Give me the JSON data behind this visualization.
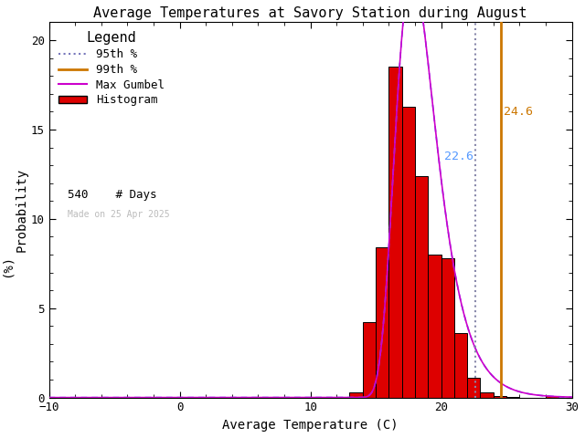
{
  "title": "Average Temperatures at Savory Station during August",
  "xlabel": "Average Temperature (C)",
  "ylabel1": "Probability",
  "ylabel2": "(%)",
  "xlim": [
    -10,
    30
  ],
  "ylim": [
    0,
    21
  ],
  "yticks": [
    0,
    5,
    10,
    15,
    20
  ],
  "xticks": [
    -10,
    0,
    10,
    20,
    30
  ],
  "bar_edges": [
    13,
    14,
    15,
    16,
    17,
    18,
    19,
    20,
    21,
    22,
    23,
    24,
    25,
    26,
    28
  ],
  "bar_heights": [
    0.3,
    4.2,
    8.4,
    18.5,
    16.3,
    12.4,
    8.0,
    7.8,
    3.6,
    1.1,
    0.3,
    0.08,
    0.02,
    0.0,
    0.1
  ],
  "n_days": 540,
  "pct_95": 22.6,
  "pct_99": 24.6,
  "gumbel_mu": 17.8,
  "gumbel_beta": 1.55,
  "bar_color": "#dd0000",
  "bar_edge_color": "#000000",
  "gumbel_color_outer": "#cc00cc",
  "gumbel_color_inner": "#6666ff",
  "pct95_color": "#8888aa",
  "pct99_color": "#cc7700",
  "pct95_label_color": "#5599ff",
  "pct99_label_color": "#cc7700",
  "legend_title": "Legend",
  "legend_95_color": "#7777bb",
  "legend_99_color": "#cc7700",
  "watermark": "Made on 25 Apr 2025",
  "watermark_color": "#bbbbbb",
  "background_color": "#ffffff",
  "title_fontsize": 11,
  "label_fontsize": 10,
  "tick_fontsize": 9,
  "legend_fontsize": 9
}
